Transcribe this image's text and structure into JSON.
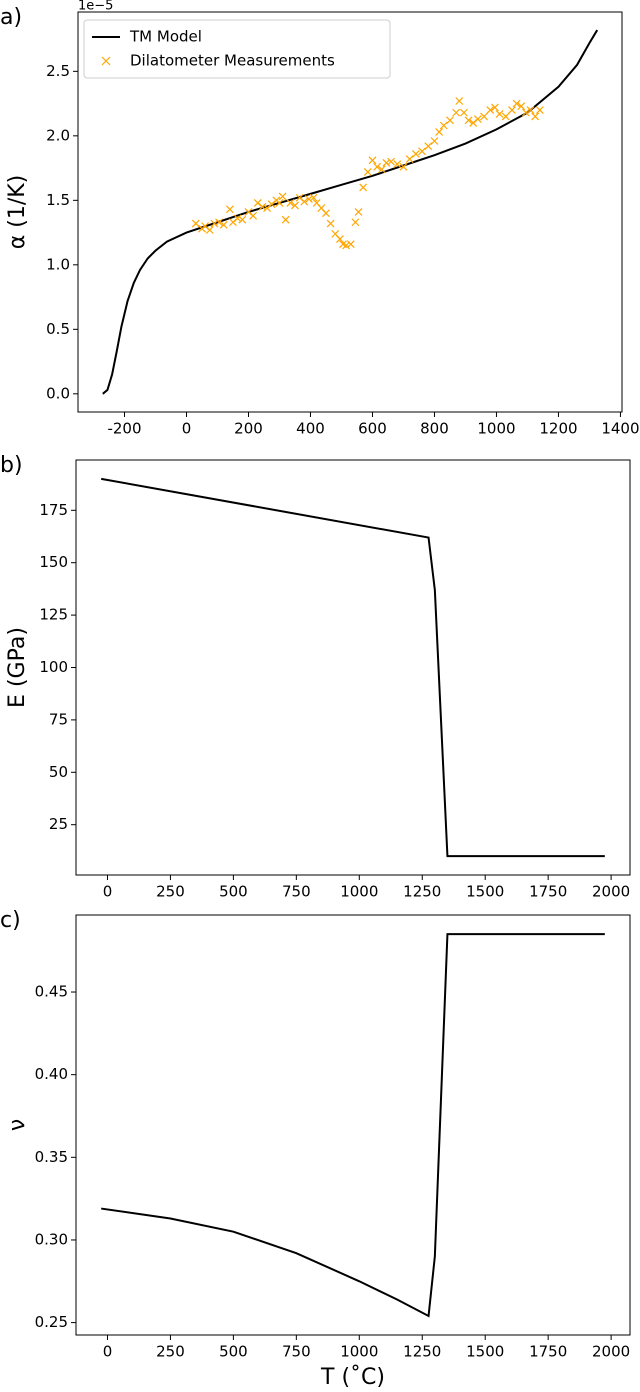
{
  "chart_data": [
    {
      "type": "line",
      "panel_label": "a)",
      "ylabel": "α (1/K)",
      "y_offset_label": "1e−5",
      "xlim": [
        -350,
        1405
      ],
      "xticks": [
        -200,
        0,
        200,
        400,
        600,
        800,
        1000,
        1200,
        1400
      ],
      "ylim": [
        -0.141,
        2.96
      ],
      "yticks": [
        {
          "value": 0,
          "label": "0.0"
        },
        0.5,
        {
          "value": 1,
          "label": "1.0"
        },
        1.5,
        {
          "value": 2,
          "label": "2.0"
        },
        2.5
      ],
      "legend": "upper left",
      "series": [
        {
          "name": "TM Model",
          "style": "line",
          "color": "#000000",
          "x": [
            -270,
            -255,
            -240,
            -225,
            -210,
            -190,
            -170,
            -150,
            -125,
            -100,
            -63,
            0,
            100,
            200,
            300,
            400,
            500,
            600,
            700,
            800,
            900,
            1000,
            1100,
            1200,
            1260,
            1300,
            1325
          ],
          "values": [
            0,
            0.03,
            0.15,
            0.33,
            0.52,
            0.72,
            0.86,
            0.96,
            1.05,
            1.11,
            1.18,
            1.25,
            1.33,
            1.41,
            1.48,
            1.55,
            1.62,
            1.69,
            1.77,
            1.85,
            1.94,
            2.05,
            2.18,
            2.38,
            2.55,
            2.72,
            2.82
          ]
        },
        {
          "name": "Dilatometer Measurements",
          "style": "scatter",
          "color": "#ffa500",
          "x": [
            30,
            50,
            60,
            75,
            90,
            105,
            120,
            140,
            150,
            165,
            180,
            200,
            215,
            230,
            245,
            260,
            275,
            290,
            300,
            310,
            320,
            335,
            350,
            365,
            380,
            395,
            410,
            420,
            435,
            450,
            465,
            480,
            495,
            505,
            515,
            530,
            545,
            555,
            570,
            585,
            600,
            615,
            630,
            645,
            660,
            680,
            700,
            720,
            740,
            760,
            780,
            800,
            815,
            830,
            850,
            870,
            880,
            895,
            910,
            925,
            940,
            960,
            980,
            995,
            1010,
            1030,
            1050,
            1065,
            1080,
            1095,
            1110,
            1125,
            1140
          ],
          "values": [
            1.32,
            1.28,
            1.3,
            1.27,
            1.32,
            1.33,
            1.31,
            1.43,
            1.33,
            1.36,
            1.35,
            1.41,
            1.38,
            1.48,
            1.45,
            1.44,
            1.47,
            1.5,
            1.48,
            1.53,
            1.35,
            1.48,
            1.46,
            1.52,
            1.49,
            1.51,
            1.52,
            1.48,
            1.44,
            1.4,
            1.32,
            1.24,
            1.2,
            1.16,
            1.15,
            1.16,
            1.33,
            1.41,
            1.6,
            1.72,
            1.81,
            1.76,
            1.74,
            1.79,
            1.8,
            1.78,
            1.76,
            1.82,
            1.86,
            1.88,
            1.92,
            1.96,
            2.03,
            2.08,
            2.12,
            2.18,
            2.27,
            2.18,
            2.12,
            2.1,
            2.13,
            2.15,
            2.2,
            2.22,
            2.17,
            2.15,
            2.2,
            2.25,
            2.23,
            2.18,
            2.2,
            2.15,
            2.2
          ]
        }
      ]
    },
    {
      "type": "line",
      "panel_label": "b)",
      "ylabel": "E (GPa)",
      "xlim": [
        -125,
        2075
      ],
      "xticks": [
        0,
        250,
        500,
        750,
        1000,
        1250,
        1500,
        1750,
        2000
      ],
      "ylim": [
        1,
        199
      ],
      "yticks": [
        25,
        50,
        75,
        100,
        125,
        150,
        175
      ],
      "series": [
        {
          "style": "line",
          "color": "#000000",
          "x": [
            -25,
            1275,
            1300,
            1350,
            1975
          ],
          "values": [
            190,
            162,
            137,
            10,
            10
          ]
        }
      ]
    },
    {
      "type": "line",
      "panel_label": "c)",
      "ylabel": "ν",
      "xlabel": "T (˚C)",
      "xlim": [
        -125,
        2075
      ],
      "xticks": [
        0,
        250,
        500,
        750,
        1000,
        1250,
        1500,
        1750,
        2000
      ],
      "ylim": [
        0.2425,
        0.4966
      ],
      "yticks": [
        0.25,
        {
          "value": 0.3,
          "label": "0.30"
        },
        0.35,
        {
          "value": 0.4,
          "label": "0.40"
        },
        0.45
      ],
      "series": [
        {
          "style": "line",
          "color": "#000000",
          "x": [
            -25,
            250,
            500,
            750,
            1000,
            1150,
            1275,
            1300,
            1350,
            1975
          ],
          "values": [
            0.319,
            0.313,
            0.305,
            0.292,
            0.275,
            0.264,
            0.254,
            0.29,
            0.485,
            0.485
          ]
        }
      ]
    }
  ]
}
